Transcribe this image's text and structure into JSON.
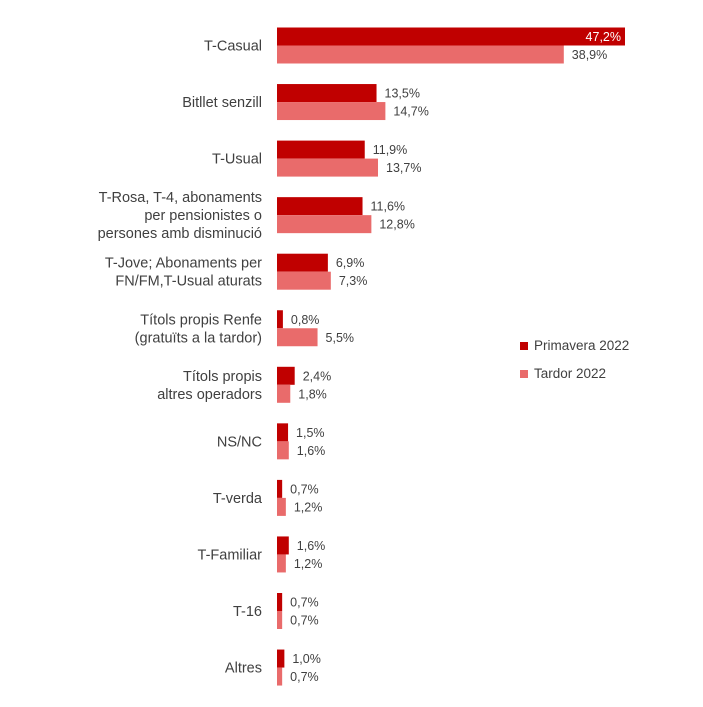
{
  "chart_data": {
    "type": "bar",
    "orientation": "horizontal",
    "categories": [
      [
        "T-Casual"
      ],
      [
        "Bitllet senzill"
      ],
      [
        "T-Usual"
      ],
      [
        "T-Rosa, T-4, abonaments",
        "per pensionistes o",
        "persones amb disminució"
      ],
      [
        "T-Jove; Abonaments per",
        "FN/FM,T-Usual aturats"
      ],
      [
        "Títols propis Renfe",
        "(gratuïts a la tardor)"
      ],
      [
        "Títols propis",
        "altres operadors"
      ],
      [
        "NS/NC"
      ],
      [
        "T-verda"
      ],
      [
        "T-Familiar"
      ],
      [
        "T-16"
      ],
      [
        "Altres"
      ]
    ],
    "series": [
      {
        "name": "Primavera 2022",
        "color": "#C00000",
        "values": [
          47.2,
          13.5,
          11.9,
          11.6,
          6.9,
          0.8,
          2.4,
          1.5,
          0.7,
          1.6,
          0.7,
          1.0
        ],
        "labels": [
          "47,2%",
          "13,5%",
          "11,9%",
          "11,6%",
          "6,9%",
          "0,8%",
          "2,4%",
          "1,5%",
          "0,7%",
          "1,6%",
          "0,7%",
          "1,0%"
        ]
      },
      {
        "name": "Tardor 2022",
        "color": "#E96B6B",
        "values": [
          38.9,
          14.7,
          13.7,
          12.8,
          7.3,
          5.5,
          1.8,
          1.6,
          1.2,
          1.2,
          0.7,
          0.7
        ],
        "labels": [
          "38,9%",
          "14,7%",
          "13,7%",
          "12,8%",
          "7,3%",
          "5,5%",
          "1,8%",
          "1,6%",
          "1,2%",
          "1,2%",
          "0,7%",
          "0,7%"
        ]
      }
    ],
    "xlim": [
      0,
      47.2
    ],
    "grid": false,
    "legend_position": "right"
  }
}
